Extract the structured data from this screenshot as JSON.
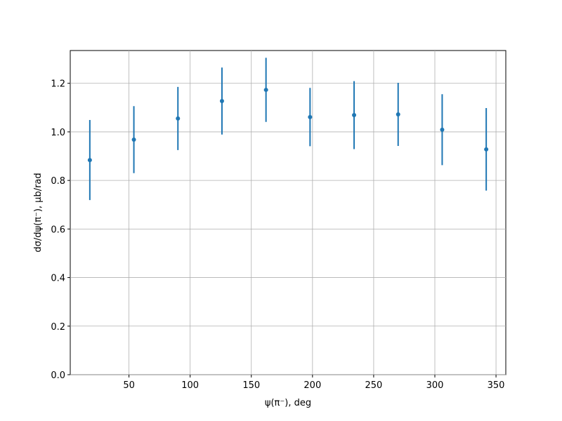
{
  "chart_data": {
    "type": "errorbar",
    "xlabel": "ψ(π⁻), deg",
    "ylabel": "dσ/dψ(π⁻), μb/rad",
    "x": [
      18,
      54,
      90,
      126,
      162,
      198,
      234,
      270,
      306,
      342
    ],
    "values": [
      0.884,
      0.968,
      1.055,
      1.127,
      1.173,
      1.061,
      1.069,
      1.072,
      1.009,
      0.928
    ],
    "errors": [
      0.165,
      0.138,
      0.13,
      0.138,
      0.132,
      0.12,
      0.14,
      0.13,
      0.146,
      0.17
    ],
    "color": "#1f77b4",
    "xlim": [
      2,
      358
    ],
    "xticks": [
      50,
      100,
      150,
      200,
      250,
      300,
      350
    ],
    "ylim": [
      0,
      1.335
    ],
    "yticks": [
      {
        "value": 0,
        "label": "0.0"
      },
      0.2,
      0.4,
      0.6,
      0.8,
      {
        "value": 1,
        "label": "1.0"
      },
      1.2
    ],
    "grid": true
  }
}
